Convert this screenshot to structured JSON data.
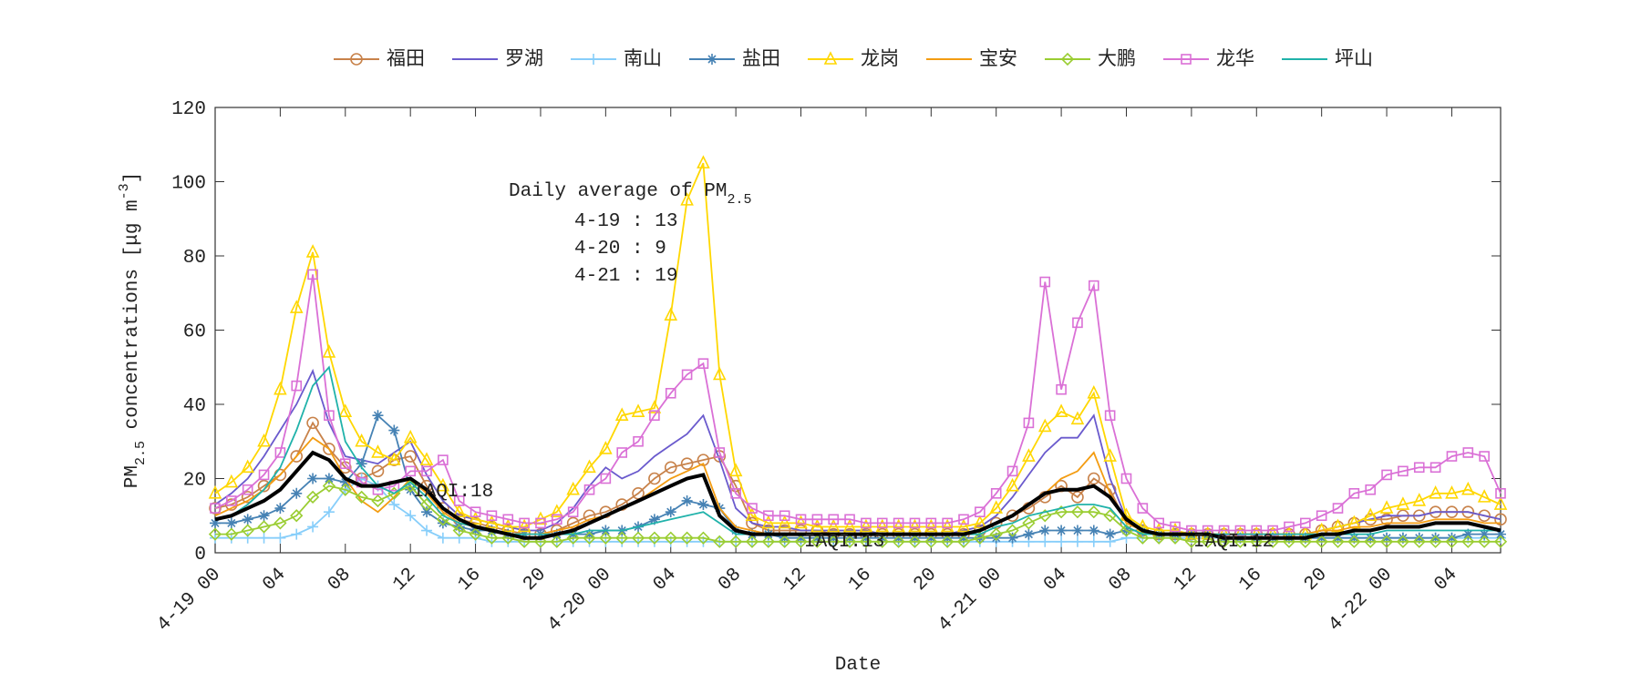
{
  "chart_data": {
    "type": "line",
    "xlabel": "Date",
    "ylabel": [
      "PM",
      "2.5",
      " concentrations [μg m",
      "-3",
      "]"
    ],
    "daily_average": {
      "title": "Daily average of PM",
      "sub": "2.5",
      "lines": [
        "4-19 : 13",
        "4-20 : 9",
        "4-21 : 19"
      ]
    },
    "annotations": [
      "IAQI:18",
      "IAQI:13",
      "IAQI:12"
    ],
    "xlim": [
      0,
      79
    ],
    "ylim": [
      0,
      120
    ],
    "yticks": [
      0,
      20,
      40,
      60,
      80,
      100,
      120
    ],
    "xticks": [
      {
        "value": 0,
        "label": "4-19 00"
      },
      {
        "value": 4,
        "label": "04"
      },
      {
        "value": 8,
        "label": "08"
      },
      {
        "value": 12,
        "label": "12"
      },
      {
        "value": 16,
        "label": "16"
      },
      {
        "value": 20,
        "label": "20"
      },
      {
        "value": 24,
        "label": "4-20 00"
      },
      {
        "value": 28,
        "label": "04"
      },
      {
        "value": 32,
        "label": "08"
      },
      {
        "value": 36,
        "label": "12"
      },
      {
        "value": 40,
        "label": "16"
      },
      {
        "value": 44,
        "label": "20"
      },
      {
        "value": 48,
        "label": "4-21 00"
      },
      {
        "value": 52,
        "label": "04"
      },
      {
        "value": 56,
        "label": "08"
      },
      {
        "value": 60,
        "label": "12"
      },
      {
        "value": 64,
        "label": "16"
      },
      {
        "value": 68,
        "label": "20"
      },
      {
        "value": 72,
        "label": "4-22 00"
      },
      {
        "value": 76,
        "label": "04"
      }
    ],
    "grid": false,
    "legend": "top",
    "x": [
      0,
      1,
      2,
      3,
      4,
      5,
      6,
      7,
      8,
      9,
      10,
      11,
      12,
      13,
      14,
      15,
      16,
      17,
      18,
      19,
      20,
      21,
      22,
      23,
      24,
      25,
      26,
      27,
      28,
      29,
      30,
      31,
      32,
      33,
      34,
      35,
      36,
      37,
      38,
      39,
      40,
      41,
      42,
      43,
      44,
      45,
      46,
      47,
      48,
      49,
      50,
      51,
      52,
      53,
      54,
      55,
      56,
      57,
      58,
      59,
      60,
      61,
      62,
      63,
      64,
      65,
      66,
      67,
      68,
      69,
      70,
      71,
      72,
      73,
      74,
      75,
      76,
      77,
      78,
      79
    ],
    "series": [
      {
        "name": "福田",
        "color": "#c8824a",
        "marker": "circle",
        "values": [
          12,
          13,
          15,
          18,
          21,
          26,
          35,
          28,
          23,
          20,
          22,
          25,
          26,
          18,
          12,
          9,
          8,
          7,
          6,
          5,
          5,
          6,
          8,
          10,
          11,
          13,
          16,
          20,
          23,
          24,
          25,
          26,
          18,
          8,
          6,
          6,
          6,
          6,
          5,
          5,
          5,
          5,
          5,
          5,
          5,
          5,
          5,
          6,
          8,
          10,
          12,
          15,
          18,
          15,
          20,
          17,
          8,
          6,
          5,
          5,
          5,
          5,
          5,
          5,
          5,
          5,
          5,
          5,
          6,
          7,
          8,
          9,
          9,
          10,
          10,
          11,
          11,
          11,
          10,
          9
        ]
      },
      {
        "name": "罗湖",
        "color": "#6a5acd",
        "marker": "none",
        "values": [
          13,
          16,
          20,
          26,
          33,
          40,
          49,
          35,
          26,
          25,
          24,
          27,
          30,
          21,
          14,
          10,
          9,
          8,
          7,
          6,
          6,
          8,
          12,
          18,
          23,
          20,
          22,
          26,
          29,
          32,
          37,
          25,
          12,
          8,
          7,
          7,
          6,
          6,
          6,
          6,
          6,
          5,
          5,
          5,
          5,
          5,
          6,
          7,
          10,
          15,
          21,
          27,
          31,
          31,
          37,
          20,
          9,
          6,
          5,
          5,
          5,
          5,
          5,
          5,
          5,
          5,
          5,
          5,
          6,
          7,
          8,
          9,
          10,
          10,
          10,
          11,
          11,
          11,
          10,
          9
        ]
      },
      {
        "name": "南山",
        "color": "#87cefa",
        "marker": "plus",
        "values": [
          4,
          4,
          4,
          4,
          4,
          5,
          7,
          11,
          17,
          20,
          18,
          13,
          10,
          6,
          4,
          4,
          4,
          3,
          3,
          3,
          3,
          3,
          3,
          3,
          3,
          3,
          3,
          3,
          3,
          3,
          3,
          3,
          3,
          3,
          3,
          3,
          3,
          3,
          3,
          3,
          3,
          3,
          3,
          3,
          3,
          3,
          3,
          3,
          3,
          3,
          3,
          3,
          3,
          3,
          3,
          3,
          4,
          4,
          4,
          4,
          4,
          4,
          4,
          4,
          4,
          4,
          4,
          4,
          4,
          4,
          4,
          4,
          4,
          4,
          4,
          4,
          4,
          4,
          4,
          4
        ]
      },
      {
        "name": "盐田",
        "color": "#4682b4",
        "marker": "asterisk",
        "values": [
          8,
          8,
          9,
          10,
          12,
          16,
          20,
          20,
          19,
          24,
          37,
          33,
          17,
          11,
          8,
          7,
          6,
          6,
          5,
          5,
          5,
          5,
          5,
          5,
          6,
          6,
          7,
          9,
          11,
          14,
          13,
          12,
          6,
          5,
          5,
          4,
          4,
          4,
          4,
          4,
          4,
          4,
          4,
          4,
          4,
          4,
          4,
          4,
          4,
          4,
          5,
          6,
          6,
          6,
          6,
          5,
          6,
          6,
          5,
          5,
          5,
          5,
          4,
          4,
          4,
          4,
          4,
          4,
          4,
          4,
          4,
          4,
          4,
          4,
          4,
          4,
          4,
          5,
          5,
          5
        ]
      },
      {
        "name": "龙岗",
        "color": "#ffd700",
        "marker": "triangle",
        "values": [
          16,
          19,
          23,
          30,
          44,
          66,
          81,
          54,
          38,
          30,
          27,
          25,
          31,
          25,
          18,
          11,
          9,
          8,
          7,
          7,
          9,
          11,
          17,
          23,
          28,
          37,
          38,
          39,
          64,
          95,
          105,
          48,
          22,
          10,
          8,
          8,
          8,
          7,
          7,
          7,
          7,
          7,
          7,
          7,
          7,
          7,
          7,
          8,
          12,
          18,
          26,
          34,
          38,
          36,
          43,
          26,
          10,
          7,
          6,
          6,
          5,
          5,
          5,
          5,
          5,
          5,
          5,
          5,
          6,
          7,
          8,
          10,
          12,
          13,
          14,
          16,
          16,
          17,
          15,
          13
        ]
      },
      {
        "name": "宝安",
        "color": "#f39c12",
        "marker": "none",
        "values": [
          10,
          12,
          14,
          17,
          21,
          26,
          31,
          28,
          20,
          14,
          11,
          15,
          20,
          16,
          11,
          8,
          7,
          6,
          5,
          5,
          5,
          6,
          7,
          9,
          10,
          12,
          14,
          17,
          20,
          22,
          24,
          12,
          7,
          6,
          5,
          5,
          5,
          5,
          5,
          5,
          5,
          5,
          5,
          5,
          5,
          5,
          5,
          6,
          8,
          10,
          13,
          16,
          20,
          22,
          27,
          16,
          8,
          6,
          5,
          5,
          5,
          5,
          5,
          5,
          5,
          5,
          5,
          5,
          6,
          6,
          7,
          7,
          8,
          8,
          8,
          9,
          9,
          9,
          8,
          8
        ]
      },
      {
        "name": "大鹏",
        "color": "#9acd32",
        "marker": "diamond",
        "values": [
          5,
          5,
          6,
          7,
          8,
          10,
          15,
          18,
          17,
          15,
          14,
          16,
          18,
          13,
          9,
          6,
          5,
          4,
          4,
          3,
          3,
          3,
          4,
          4,
          4,
          4,
          4,
          4,
          4,
          4,
          4,
          3,
          3,
          3,
          3,
          3,
          3,
          3,
          3,
          3,
          3,
          3,
          3,
          3,
          3,
          3,
          3,
          4,
          5,
          6,
          8,
          10,
          11,
          11,
          11,
          10,
          6,
          4,
          4,
          4,
          3,
          3,
          3,
          3,
          3,
          3,
          3,
          3,
          3,
          3,
          3,
          3,
          3,
          3,
          3,
          3,
          3,
          3,
          3,
          3
        ]
      },
      {
        "name": "龙华",
        "color": "#da70d6",
        "marker": "square",
        "values": [
          12,
          14,
          17,
          21,
          27,
          45,
          75,
          37,
          24,
          19,
          17,
          18,
          22,
          22,
          25,
          14,
          11,
          10,
          9,
          8,
          8,
          9,
          11,
          17,
          20,
          27,
          30,
          37,
          43,
          48,
          51,
          27,
          16,
          12,
          10,
          10,
          9,
          9,
          9,
          9,
          8,
          8,
          8,
          8,
          8,
          8,
          9,
          11,
          16,
          22,
          35,
          73,
          44,
          62,
          72,
          37,
          20,
          12,
          8,
          7,
          6,
          6,
          6,
          6,
          6,
          6,
          7,
          8,
          10,
          12,
          16,
          17,
          21,
          22,
          23,
          23,
          26,
          27,
          26,
          16
        ]
      },
      {
        "name": "坪山",
        "color": "#20b2aa",
        "marker": "none",
        "values": [
          9,
          10,
          13,
          17,
          23,
          33,
          45,
          50,
          30,
          23,
          18,
          16,
          19,
          15,
          10,
          8,
          7,
          6,
          5,
          5,
          5,
          5,
          5,
          6,
          6,
          6,
          7,
          8,
          9,
          10,
          11,
          8,
          5,
          5,
          5,
          5,
          5,
          5,
          5,
          5,
          5,
          5,
          5,
          5,
          5,
          5,
          5,
          5,
          7,
          8,
          10,
          11,
          12,
          13,
          13,
          12,
          7,
          5,
          5,
          5,
          5,
          5,
          5,
          5,
          5,
          5,
          5,
          5,
          5,
          5,
          5,
          5,
          6,
          6,
          6,
          6,
          6,
          6,
          6,
          6
        ]
      }
    ],
    "average": {
      "color": "#000000",
      "values": [
        9,
        10,
        12,
        14,
        17,
        22,
        27,
        25,
        20,
        18,
        18,
        19,
        20,
        17,
        12,
        9,
        7,
        6,
        5,
        4,
        4,
        5,
        6,
        8,
        10,
        12,
        14,
        16,
        18,
        20,
        21,
        10,
        6,
        5,
        5,
        5,
        5,
        5,
        5,
        5,
        5,
        5,
        5,
        5,
        5,
        5,
        5,
        6,
        8,
        10,
        13,
        16,
        17,
        17,
        18,
        15,
        9,
        6,
        5,
        5,
        5,
        5,
        4,
        4,
        4,
        4,
        4,
        4,
        5,
        5,
        6,
        6,
        7,
        7,
        7,
        8,
        8,
        8,
        7,
        6
      ]
    }
  }
}
